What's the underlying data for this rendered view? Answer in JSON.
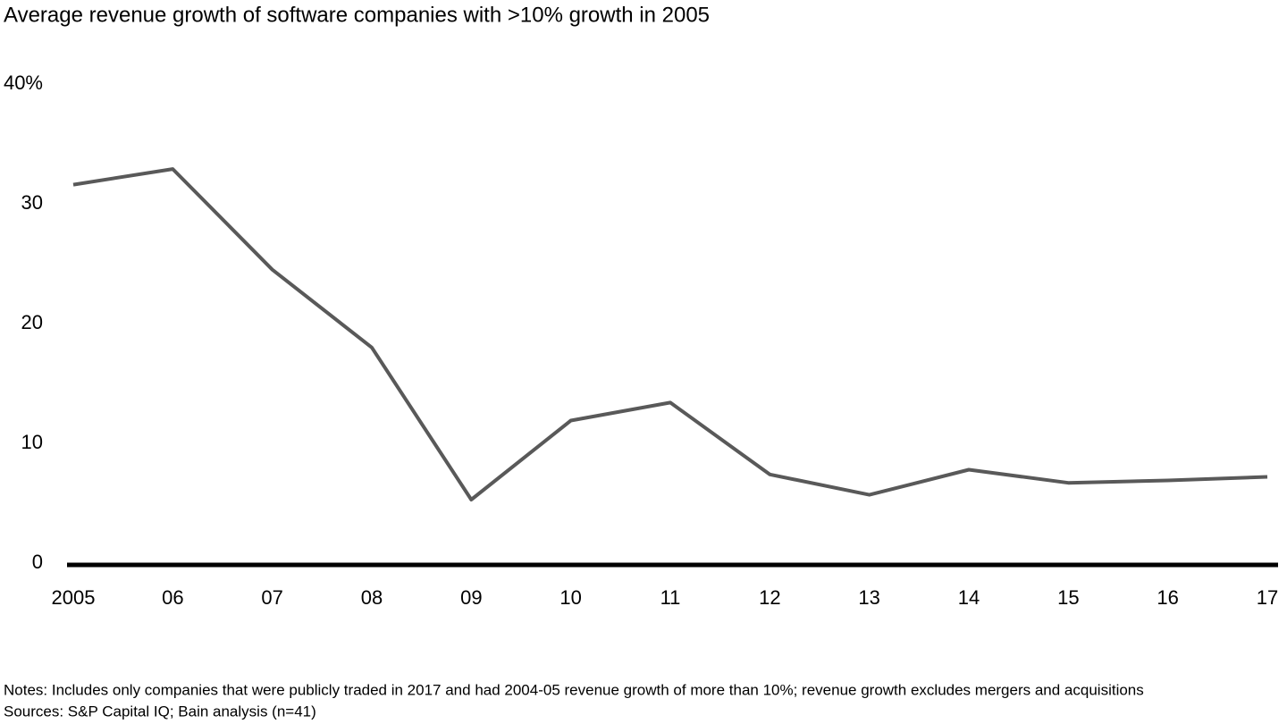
{
  "chart_data": {
    "type": "line",
    "title": "Average revenue growth of software companies with >10% growth in 2005",
    "categories": [
      "2005",
      "06",
      "07",
      "08",
      "09",
      "10",
      "11",
      "12",
      "13",
      "14",
      "15",
      "16",
      "17"
    ],
    "values": [
      31.6,
      32.9,
      24.5,
      18.0,
      5.3,
      11.9,
      13.4,
      7.4,
      5.7,
      7.8,
      6.7,
      6.9,
      7.2
    ],
    "color": "#595959",
    "ylim": [
      0,
      40
    ],
    "yticks": [
      0,
      10,
      20,
      30,
      {
        "value": 40,
        "label": "40%"
      }
    ],
    "grid": false,
    "notes": "Notes: Includes only companies that were publicly traded in 2017 and had 2004-05 revenue growth of more than 10%; revenue growth excludes mergers and acquisitions",
    "sources": "Sources: S&P Capital IQ; Bain analysis (n=41)"
  }
}
